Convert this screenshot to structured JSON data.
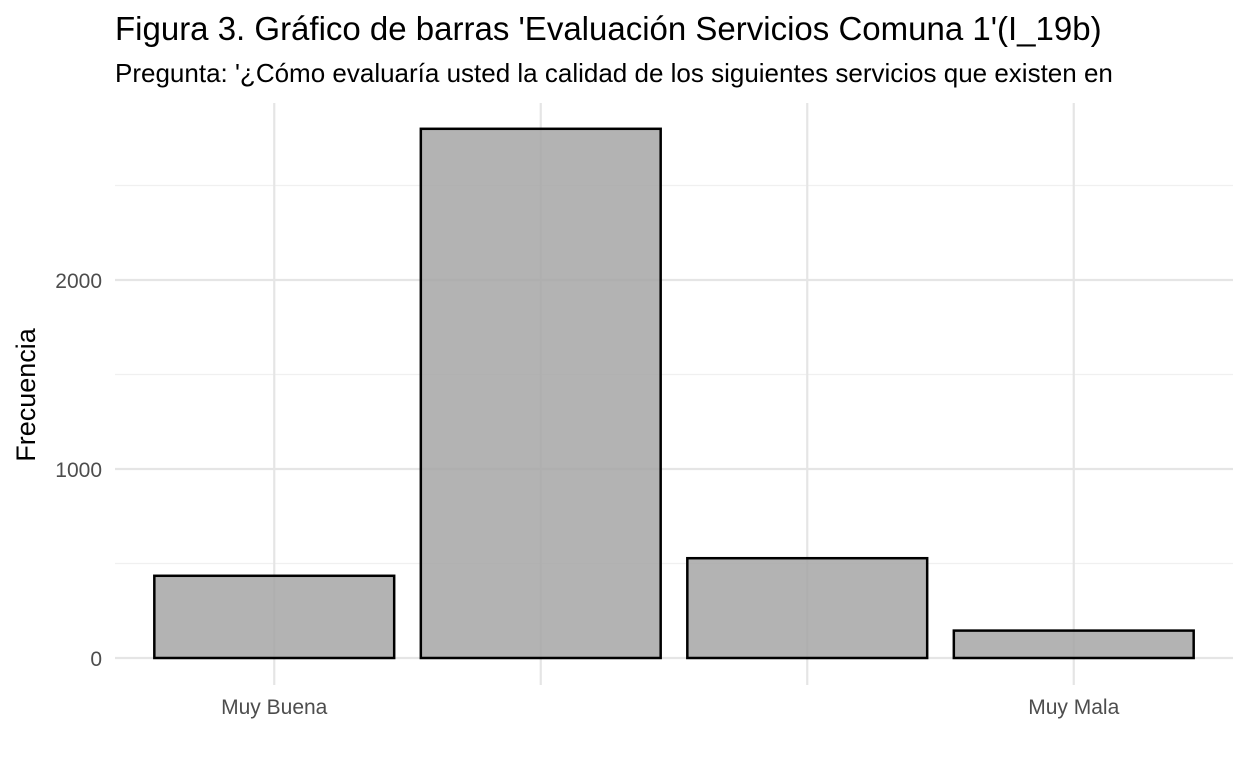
{
  "chart_data": {
    "type": "bar",
    "title": "Figura 3. Gráfico de barras 'Evaluación Servicios Comuna 1'(I_19b)",
    "subtitle": "Pregunta: '¿Cómo evaluaría usted la calidad de los siguientes servicios que existen en",
    "ylabel": "Frecuencia",
    "xlabel": "",
    "categories": [
      "Muy Buena",
      "",
      "",
      "Muy Mala"
    ],
    "values": [
      435,
      2800,
      528,
      145
    ],
    "ylim": [
      0,
      2900
    ],
    "y_ticks": [
      0,
      1000,
      2000
    ],
    "y_minor_ticks": [
      500,
      1500,
      2500
    ],
    "grid": true,
    "bar_fill": "#a6a6a6",
    "bar_stroke": "#000000",
    "grid_major_color": "#e5e5e5",
    "grid_minor_color": "#f0f0f0"
  }
}
